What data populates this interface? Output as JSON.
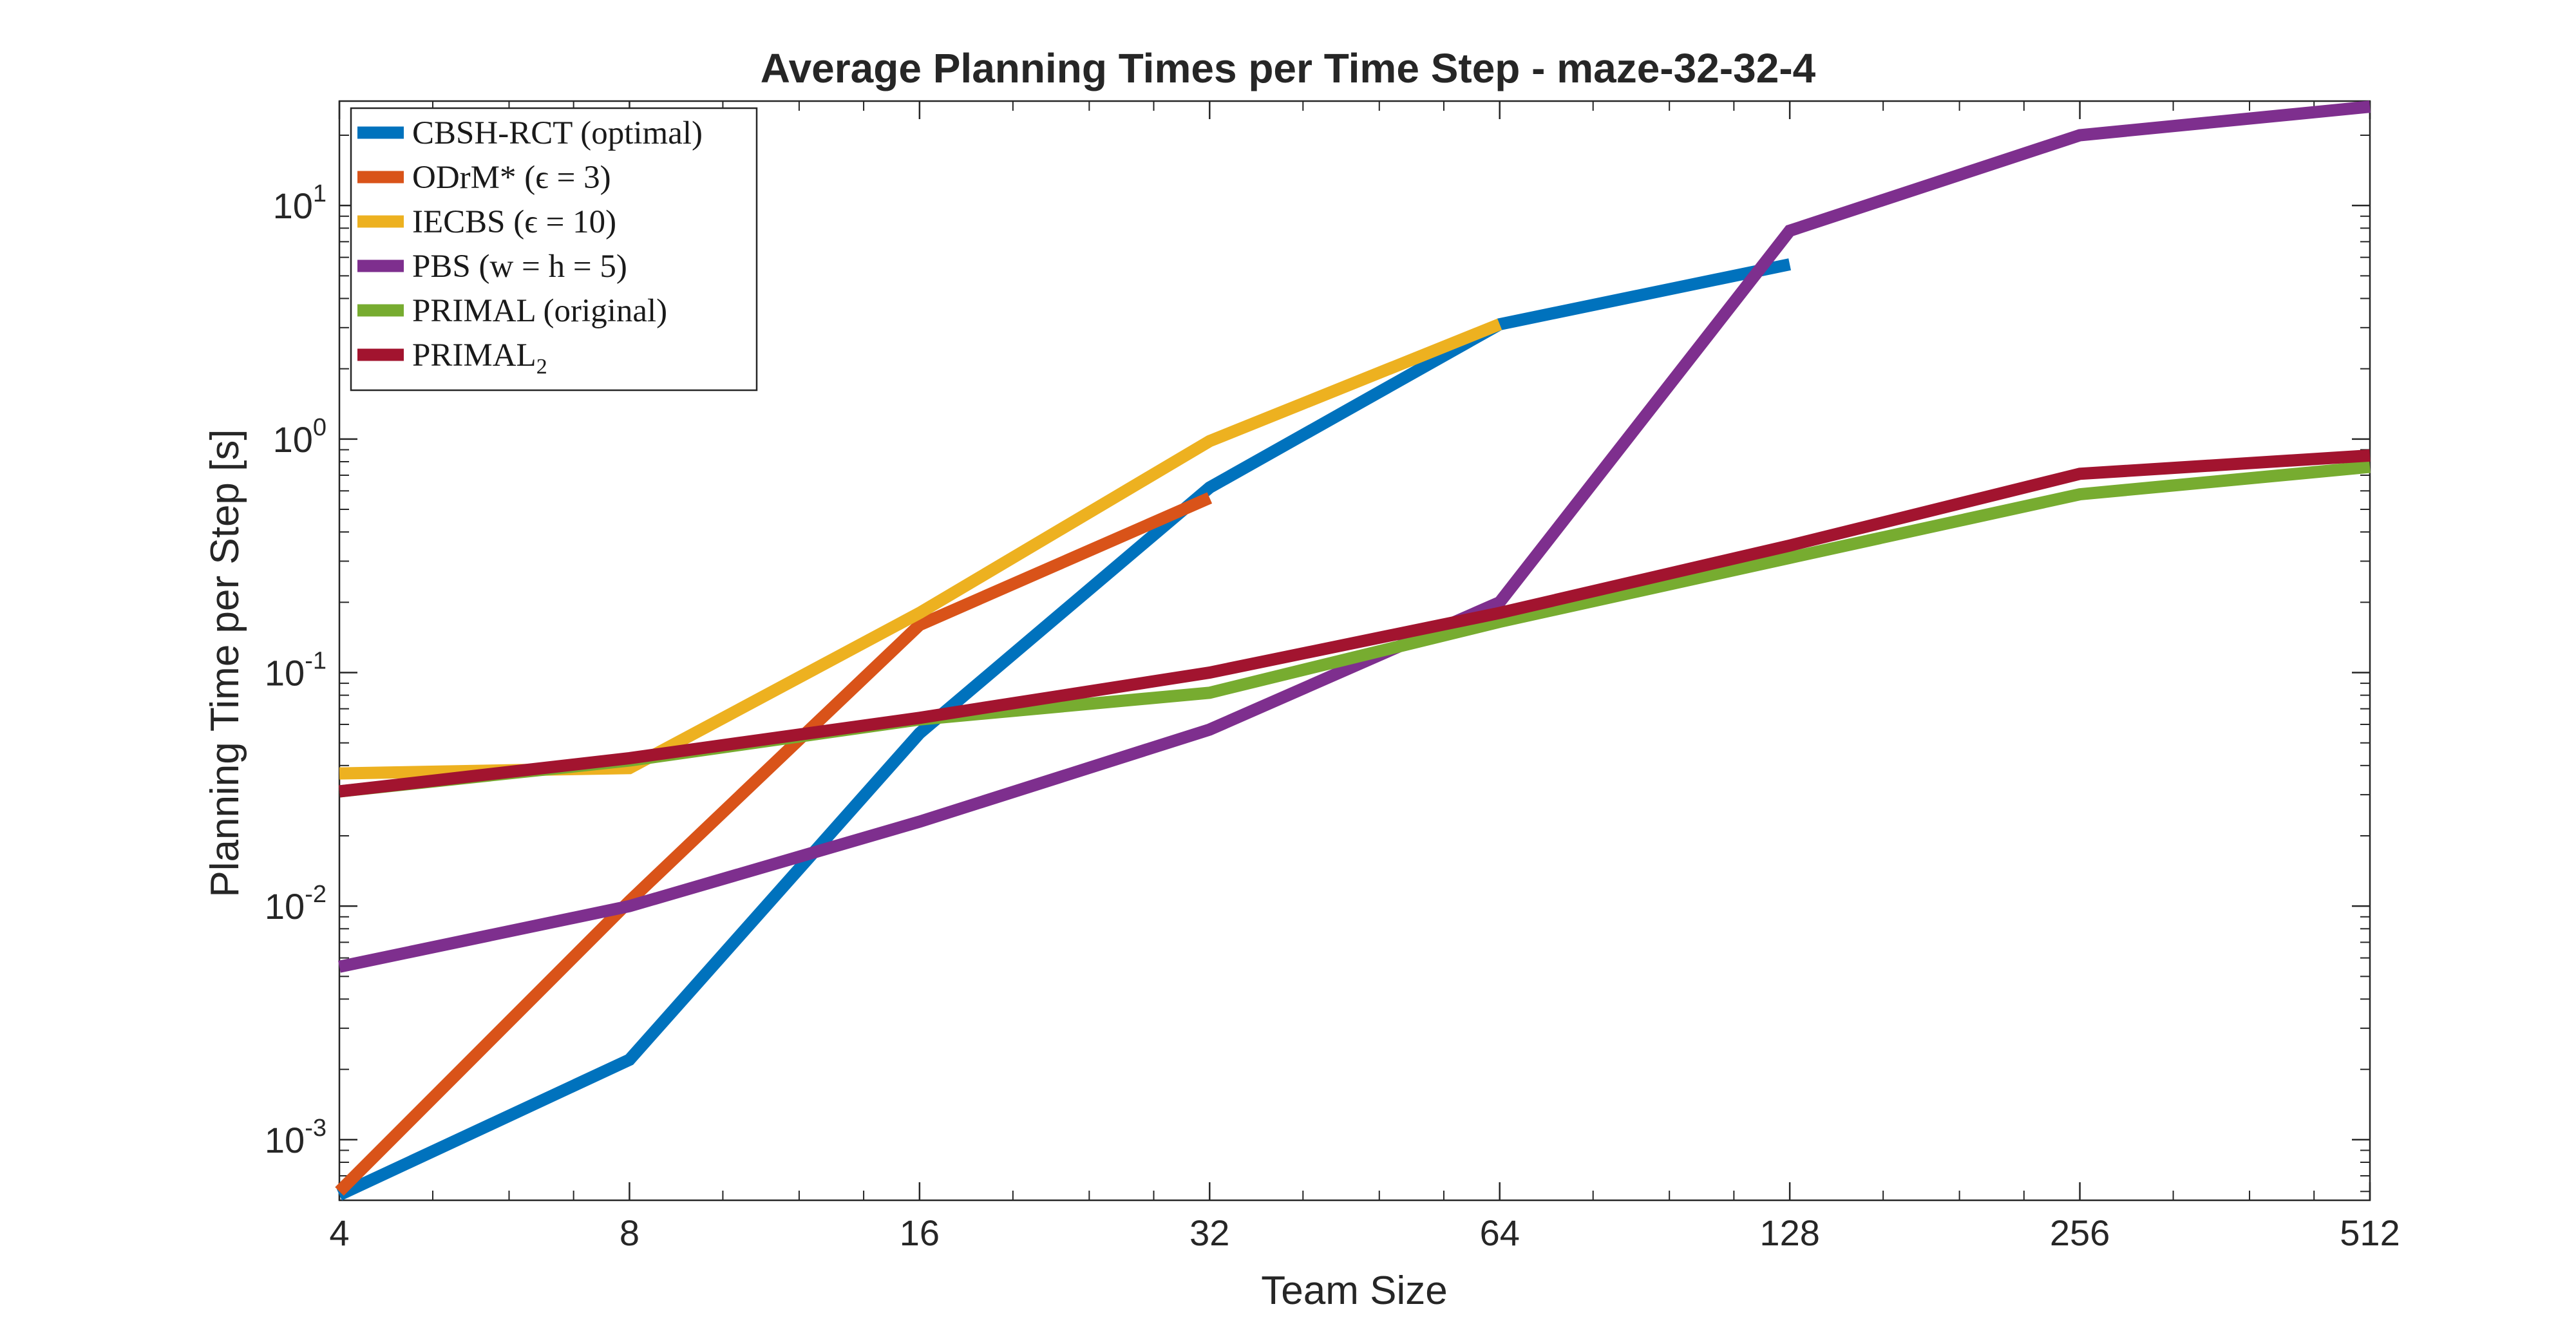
{
  "chart_data": {
    "type": "line",
    "title": "Average Planning Times per Time Step - maze-32-32-4",
    "xlabel": "Team Size",
    "ylabel": "Planning Time per Step [s]",
    "x_scale": "log2",
    "y_scale": "log10",
    "xlim": [
      4,
      512
    ],
    "ylim": [
      0.00055,
      28
    ],
    "x_ticks": [
      4,
      8,
      16,
      32,
      64,
      128,
      256,
      512
    ],
    "x_tick_labels": [
      "4",
      "8",
      "16",
      "32",
      "64",
      "128",
      "256",
      "512"
    ],
    "y_ticks": [
      0.001,
      0.01,
      0.1,
      1,
      10
    ],
    "y_tick_labels": [
      {
        "base": "10",
        "exp": "-3"
      },
      {
        "base": "10",
        "exp": "-2"
      },
      {
        "base": "10",
        "exp": "-1"
      },
      {
        "base": "10",
        "exp": "0"
      },
      {
        "base": "10",
        "exp": "1"
      }
    ],
    "grid": false,
    "legend_position": "top-left",
    "series": [
      {
        "name": "CBSH-RCT (optimal)",
        "color": "#0072BD",
        "x": [
          4,
          8,
          16,
          32,
          64,
          128
        ],
        "y": [
          0.00058,
          0.0022,
          0.055,
          0.62,
          3.1,
          5.6
        ]
      },
      {
        "name": "ODrM* (ϵ = 3)",
        "color": "#D95319",
        "x": [
          4,
          8,
          16,
          32
        ],
        "y": [
          0.0006,
          0.0105,
          0.16,
          0.56
        ]
      },
      {
        "name": "IECBS (ϵ = 10)",
        "color": "#EDB120",
        "x": [
          4,
          8,
          16,
          32,
          64
        ],
        "y": [
          0.037,
          0.039,
          0.18,
          0.98,
          3.1
        ]
      },
      {
        "name": "PBS (w = h = 5)",
        "color": "#7E2F8E",
        "x": [
          4,
          8,
          16,
          32,
          64,
          128,
          256,
          512
        ],
        "y": [
          0.0055,
          0.01,
          0.023,
          0.057,
          0.2,
          7.8,
          20,
          26.5
        ]
      },
      {
        "name": "PRIMAL (original)",
        "color": "#77AC30",
        "x": [
          4,
          8,
          16,
          32,
          64,
          128,
          256,
          512
        ],
        "y": [
          0.031,
          0.042,
          0.063,
          0.082,
          0.165,
          0.31,
          0.58,
          0.76
        ]
      },
      {
        "name": "PRIMAL2",
        "legend_main": "PRIMAL",
        "legend_sub": "2",
        "color": "#A2142F",
        "x": [
          4,
          8,
          16,
          32,
          64,
          128,
          256,
          512
        ],
        "y": [
          0.031,
          0.043,
          0.064,
          0.1,
          0.18,
          0.35,
          0.71,
          0.85
        ]
      }
    ]
  }
}
